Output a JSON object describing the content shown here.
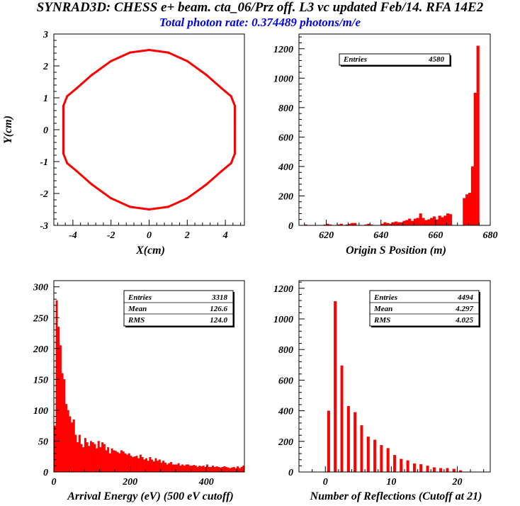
{
  "header": {
    "title": "SYNRAD3D: CHESS e+ beam. cta_06/Prz off. L3 vc updated Feb/14.  RFA 14E2",
    "subtitle": "Total photon rate: 0.374489 photons/m/e",
    "subtitle_color": "#0000ee"
  },
  "colors": {
    "histogram": "#ff0000",
    "axis": "#000000",
    "frame": "#000000"
  },
  "chart_data": [
    {
      "type": "scatter",
      "xlabel": "X(cm)",
      "ylabel": "Y(cm)",
      "xlim": [
        -5,
        5
      ],
      "ylim": [
        -3,
        3
      ],
      "xticks": [
        -4,
        -2,
        0,
        2,
        4
      ],
      "xtick_labels": [
        "-4",
        "-2",
        "0",
        "2",
        "4"
      ],
      "yticks": [
        -3,
        -2,
        -1,
        0,
        1,
        2,
        3
      ],
      "ytick_labels": [
        "-3",
        "-2",
        "-1",
        "0",
        "1",
        "2",
        "3"
      ],
      "grid": false,
      "x": [
        0,
        1.0,
        2.0,
        3.0,
        3.8,
        4.3,
        4.5,
        4.5,
        4.5,
        4.3,
        3.8,
        3.0,
        2.0,
        1.0,
        0,
        -1.0,
        -2.0,
        -3.0,
        -3.8,
        -4.3,
        -4.5,
        -4.5,
        -4.5,
        -4.3,
        -3.8,
        -3.0,
        -2.0,
        -1.0,
        0
      ],
      "y": [
        2.5,
        2.42,
        2.15,
        1.72,
        1.3,
        1.05,
        0.75,
        0,
        -0.75,
        -1.05,
        -1.3,
        -1.72,
        -2.15,
        -2.42,
        -2.5,
        -2.42,
        -2.15,
        -1.72,
        -1.3,
        -1.05,
        -0.75,
        0,
        0.75,
        1.05,
        1.3,
        1.72,
        2.15,
        2.42,
        2.5
      ]
    },
    {
      "type": "bar",
      "xlabel": "Origin S Position (m)",
      "ylabel": "",
      "xlim": [
        610,
        680
      ],
      "ylim": [
        0,
        1300
      ],
      "bin_width": 1,
      "xticks": [
        620,
        640,
        660,
        680
      ],
      "xtick_labels": [
        "620",
        "640",
        "660",
        "680"
      ],
      "yticks": [
        0,
        200,
        400,
        600,
        800,
        1000,
        1200
      ],
      "ytick_labels": [
        "0",
        "200",
        "400",
        "600",
        "800",
        "1000",
        "1200"
      ],
      "grid": false,
      "stats_box": [
        {
          "label": "Entries",
          "value": "4580"
        }
      ],
      "bin_start": [
        611,
        612,
        613,
        614,
        615,
        616,
        617,
        618,
        619,
        620,
        621,
        622,
        623,
        624,
        625,
        626,
        627,
        628,
        629,
        630,
        631,
        632,
        633,
        634,
        635,
        636,
        637,
        638,
        639,
        640,
        641,
        642,
        643,
        644,
        645,
        646,
        647,
        648,
        649,
        650,
        651,
        652,
        653,
        654,
        655,
        656,
        657,
        658,
        659,
        660,
        661,
        662,
        663,
        664,
        665,
        666,
        667,
        668,
        669,
        670,
        671,
        672,
        673,
        674,
        675
      ],
      "values": [
        0,
        5,
        0,
        0,
        0,
        0,
        0,
        0,
        5,
        10,
        5,
        0,
        0,
        5,
        10,
        0,
        5,
        10,
        15,
        15,
        0,
        0,
        0,
        5,
        10,
        5,
        0,
        0,
        0,
        10,
        20,
        15,
        10,
        20,
        25,
        20,
        20,
        30,
        35,
        45,
        30,
        45,
        50,
        80,
        50,
        35,
        40,
        50,
        60,
        40,
        65,
        55,
        65,
        80,
        75,
        0,
        0,
        0,
        0,
        185,
        210,
        220,
        400,
        900,
        1220
      ]
    },
    {
      "type": "bar",
      "xlabel": "Arrival Energy (eV) (500 eV cutoff)",
      "ylabel": "",
      "xlim": [
        0,
        500
      ],
      "ylim": [
        0,
        310
      ],
      "bin_width": 5,
      "xticks": [
        0,
        200,
        400
      ],
      "xtick_labels": [
        "0",
        "200",
        "400"
      ],
      "yticks": [
        0,
        50,
        100,
        150,
        200,
        250,
        300
      ],
      "ytick_labels": [
        "0",
        "50",
        "100",
        "150",
        "200",
        "250",
        "300"
      ],
      "grid": false,
      "stats_box": [
        {
          "label": "Entries",
          "value": "3318"
        },
        {
          "label": "Mean",
          "value": "126.6"
        },
        {
          "label": "RMS",
          "value": "124.0"
        }
      ],
      "bin_start": [
        0,
        5,
        10,
        15,
        20,
        25,
        30,
        35,
        40,
        45,
        50,
        55,
        60,
        65,
        70,
        75,
        80,
        85,
        90,
        95,
        100,
        105,
        110,
        115,
        120,
        125,
        130,
        135,
        140,
        145,
        150,
        155,
        160,
        165,
        170,
        175,
        180,
        185,
        190,
        195,
        200,
        205,
        210,
        215,
        220,
        225,
        230,
        235,
        240,
        245,
        250,
        255,
        260,
        265,
        270,
        275,
        280,
        285,
        290,
        295,
        300,
        305,
        310,
        315,
        320,
        325,
        330,
        335,
        340,
        345,
        350,
        355,
        360,
        365,
        370,
        375,
        380,
        385,
        390,
        395,
        400,
        405,
        410,
        415,
        420,
        425,
        430,
        435,
        440,
        445,
        450,
        455,
        460,
        465,
        470,
        475,
        480,
        485,
        490,
        495
      ],
      "values": [
        75,
        278,
        235,
        205,
        160,
        150,
        110,
        100,
        90,
        80,
        85,
        60,
        48,
        60,
        45,
        40,
        55,
        48,
        42,
        50,
        48,
        45,
        38,
        50,
        40,
        48,
        45,
        35,
        40,
        30,
        38,
        35,
        34,
        32,
        30,
        35,
        33,
        30,
        28,
        30,
        26,
        24,
        25,
        26,
        22,
        28,
        24,
        20,
        22,
        18,
        24,
        20,
        17,
        22,
        18,
        20,
        15,
        18,
        15,
        12,
        14,
        16,
        12,
        12,
        12,
        14,
        10,
        12,
        10,
        12,
        12,
        10,
        10,
        11,
        10,
        8,
        10,
        9,
        10,
        8,
        12,
        8,
        8,
        10,
        8,
        9,
        8,
        7,
        8,
        9,
        8,
        7,
        6,
        7,
        8,
        6,
        9,
        6,
        8,
        10
      ]
    },
    {
      "type": "bar",
      "xlabel": "Number of Reflections (Cutoff at 21)",
      "ylabel": "",
      "xlim": [
        -4,
        25
      ],
      "ylim": [
        0,
        1250
      ],
      "bin_width": 1,
      "bar_fraction": 0.4,
      "xticks": [
        0,
        10,
        20
      ],
      "xtick_labels": [
        "0",
        "10",
        "20"
      ],
      "yticks": [
        0,
        200,
        400,
        600,
        800,
        1000,
        1200
      ],
      "ytick_labels": [
        "0",
        "200",
        "400",
        "600",
        "800",
        "1000",
        "1200"
      ],
      "grid": false,
      "stats_box": [
        {
          "label": "Entries",
          "value": "4494"
        },
        {
          "label": "Mean",
          "value": "4.297"
        },
        {
          "label": "RMS",
          "value": "4.025"
        }
      ],
      "bin_start": [
        0,
        1,
        2,
        3,
        4,
        5,
        6,
        7,
        8,
        9,
        10,
        11,
        12,
        13,
        14,
        15,
        16,
        17,
        18,
        19,
        20
      ],
      "values": [
        400,
        1115,
        695,
        430,
        390,
        305,
        230,
        210,
        175,
        155,
        110,
        85,
        75,
        55,
        50,
        40,
        30,
        25,
        25,
        20,
        10
      ]
    }
  ]
}
